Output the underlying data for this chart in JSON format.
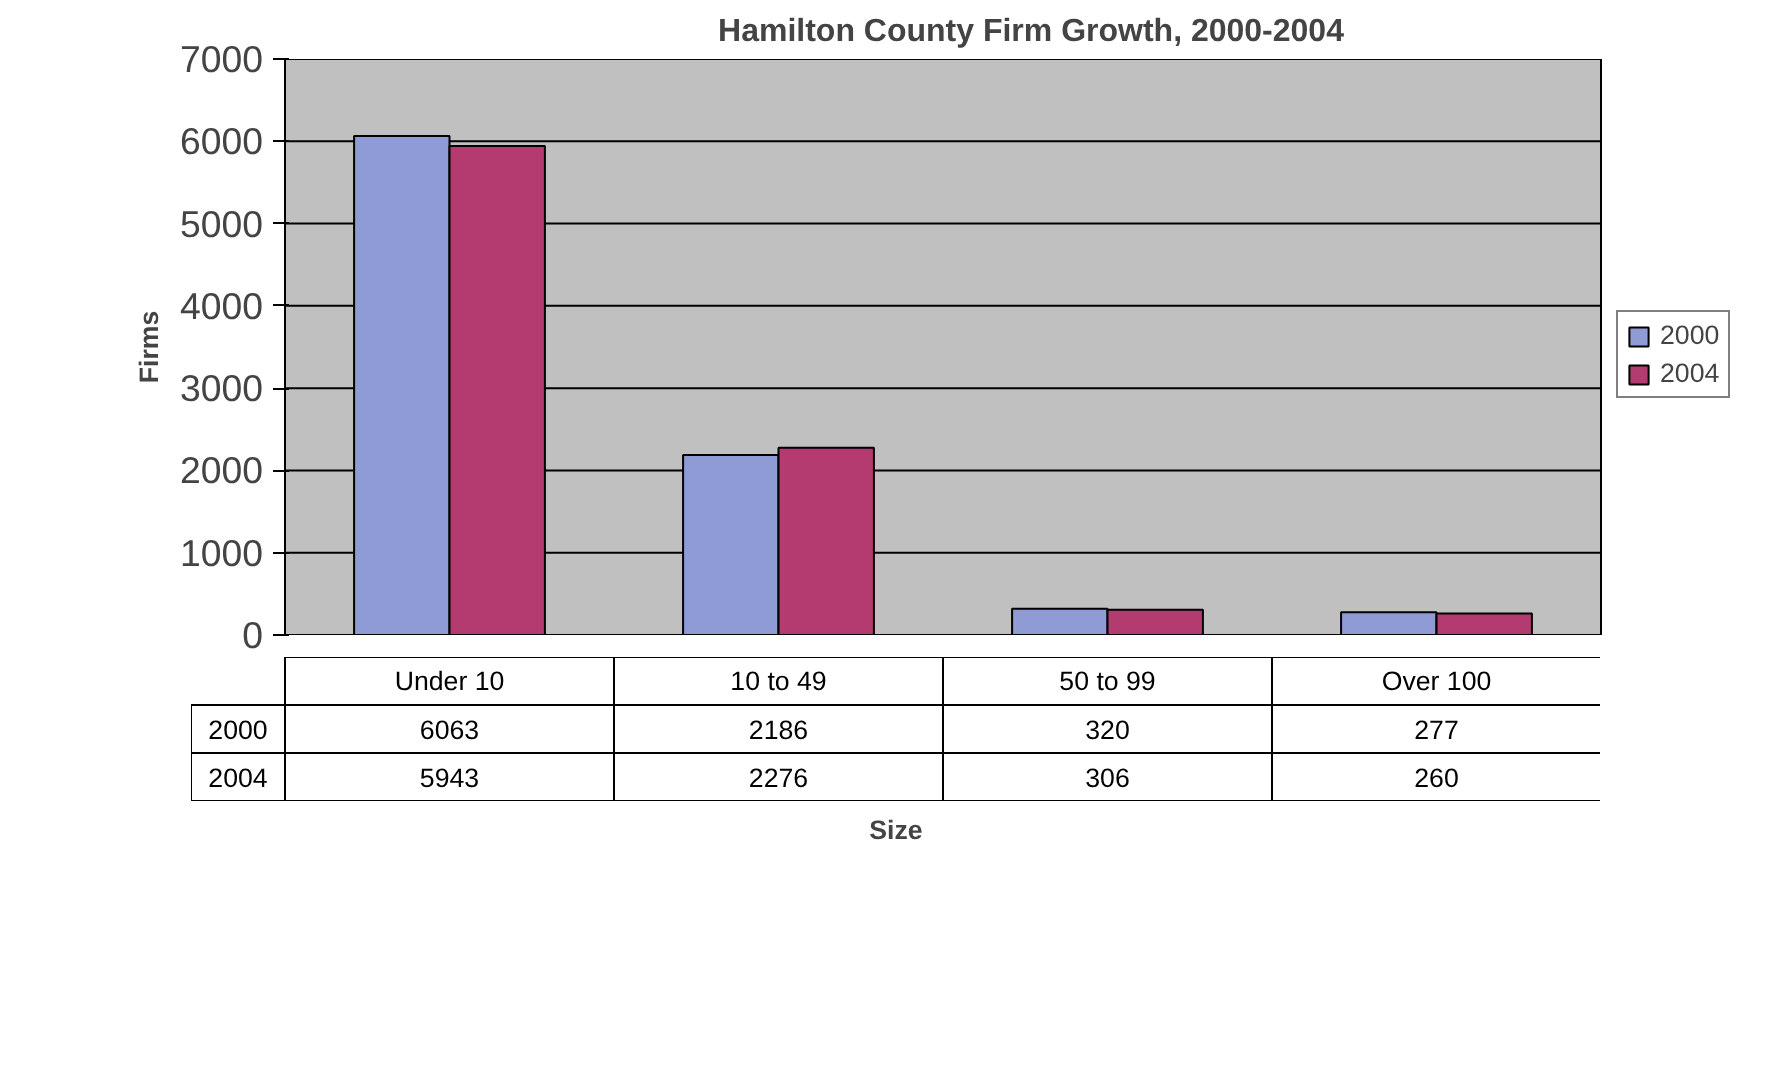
{
  "chart_data": {
    "type": "bar",
    "title": "Hamilton County Firm Growth, 2000-2004",
    "xlabel": "Size",
    "ylabel": "Firms",
    "categories": [
      "Under 10",
      "10 to 49",
      "50 to 99",
      "Over 100"
    ],
    "series": [
      {
        "name": "2000",
        "color": "#8e9bd4",
        "values": [
          6063,
          2186,
          320,
          277
        ]
      },
      {
        "name": "2004",
        "color": "#b33b6f",
        "values": [
          5943,
          2276,
          306,
          260
        ]
      }
    ],
    "ylim": [
      0,
      7000
    ],
    "yticks": [
      0,
      1000,
      2000,
      3000,
      4000,
      5000,
      6000,
      7000
    ],
    "grid": "y",
    "legend": "right",
    "data_labels": true
  }
}
